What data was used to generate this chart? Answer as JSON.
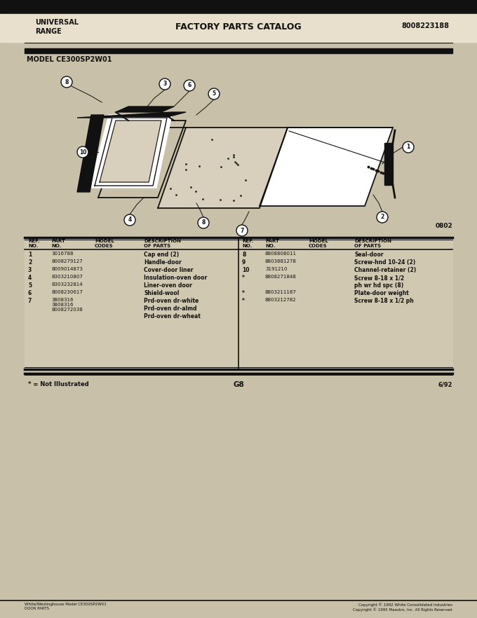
{
  "title": "FACTORY PARTS CATALOG",
  "left_header": "UNIVERSAL\nRANGE",
  "right_header": "8008223188",
  "model_label": "MODEL CE300SP2W01",
  "bg_color": "#c8c0a8",
  "header_bg": "#111111",
  "page_label": "G8",
  "page_date": "6/92",
  "footnote": "* = Not Illustrated",
  "bottom_left": "White/Westinghouse Model CE300SP2W01\nDOOR PARTS",
  "bottom_right": "Copyright © 1992 White Consolidated Industries\nCopyright © 1995 Maestro, Inc. All Rights Reserved",
  "ref_id": "0802",
  "table_headers_left": [
    "REF.\nNO.",
    "PART\nNO.",
    "MODEL\nCODES",
    "DESCRIPTION\nOF PARTS"
  ],
  "table_headers_right": [
    "REF.\nNO.",
    "PART\nNO.",
    "MODEL\nCODES",
    "DESCRIPTION\nOF PARTS"
  ],
  "left_table": [
    [
      "1",
      "3016788",
      "",
      "Cap end (2)"
    ],
    [
      "2",
      "8008279127",
      "",
      "Handle-door"
    ],
    [
      "3",
      "8009014873",
      "",
      "Cover-door liner"
    ],
    [
      "4",
      "8303210807",
      "",
      "Insulation-oven door"
    ],
    [
      "5",
      "8303232814",
      "",
      "Liner-oven door"
    ],
    [
      "6",
      "8008230617",
      "",
      "Shield-wool"
    ],
    [
      "7",
      "3808316\n3808316\n8008272038",
      "",
      "Prd-oven dr-white\nPrd-oven dr-almd\nPrd-oven dr-wheat"
    ]
  ],
  "right_table": [
    [
      "8",
      "8808808011",
      "",
      "Seal-door"
    ],
    [
      "9",
      "8803881278",
      "",
      "Screw-hnd 10-24 (2)"
    ],
    [
      "10",
      "3191210",
      "",
      "Channel-retainer (2)"
    ],
    [
      "*",
      "8808271848",
      "",
      "Screw 8-18 x 1/2\nph wr hd spc (8)"
    ],
    [
      "*",
      "8803211187",
      "",
      "Plate-door weight"
    ],
    [
      "*",
      "8803212782",
      "",
      "Screw 8-18 x 1/2 ph"
    ]
  ]
}
